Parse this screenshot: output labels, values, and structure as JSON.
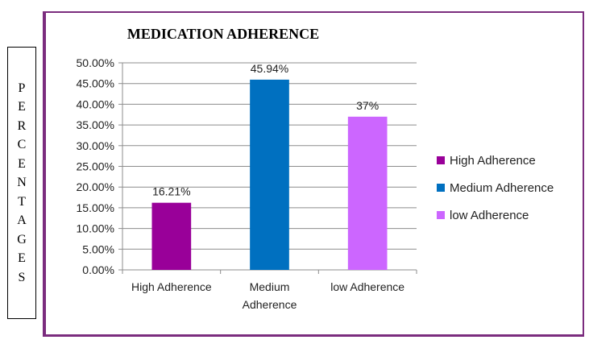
{
  "side_label": "PERCENTAGES",
  "chart_data": {
    "type": "bar",
    "title": "MEDICATION ADHERENCE",
    "xlabel": "",
    "ylabel": "PERCENTAGES",
    "categories": [
      "High Adherence",
      "Medium Adherence",
      "low Adherence"
    ],
    "category_label_lines": [
      [
        "High Adherence"
      ],
      [
        "Medium",
        "Adherence"
      ],
      [
        "low Adherence"
      ]
    ],
    "values": [
      16.21,
      45.94,
      37
    ],
    "data_labels": [
      "16.21%",
      "45.94%",
      "37%"
    ],
    "colors": [
      "#990099",
      "#0070c0",
      "#cc66ff"
    ],
    "ylim": [
      0,
      50
    ],
    "yticks": [
      0,
      5,
      10,
      15,
      20,
      25,
      30,
      35,
      40,
      45,
      50
    ],
    "ytick_labels": [
      "0.00%",
      "5.00%",
      "10.00%",
      "15.00%",
      "20.00%",
      "25.00%",
      "30.00%",
      "35.00%",
      "40.00%",
      "45.00%",
      "50.00%"
    ],
    "grid": true,
    "legend": {
      "position": "right",
      "entries": [
        "High Adherence",
        "Medium Adherence",
        "low Adherence"
      ]
    }
  }
}
